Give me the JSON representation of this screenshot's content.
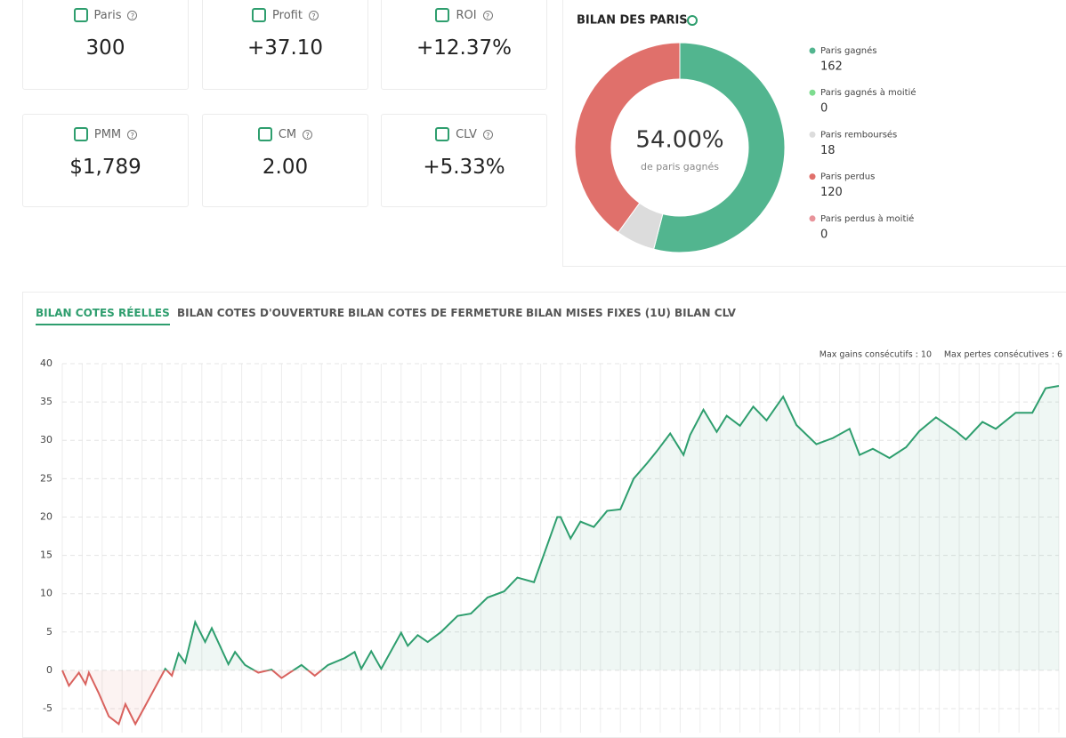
{
  "stats": [
    {
      "label": "Paris",
      "value": "300"
    },
    {
      "label": "Profit",
      "value": "+37.10"
    },
    {
      "label": "ROI",
      "value": "+12.37%"
    },
    {
      "label": "PMM",
      "value": "$1,789"
    },
    {
      "label": "CM",
      "value": "2.00"
    },
    {
      "label": "CLV",
      "value": "+5.33%"
    }
  ],
  "tabs": [
    "BILAN COTES RÉELLES",
    "BILAN COTES D'OUVERTURE",
    "BILAN COTES DE FERMETURE",
    "BILAN MISES FIXES (1U)",
    "BILAN CLV"
  ],
  "chart_data": [
    {
      "type": "pie",
      "title": "BILAN DES PARIS",
      "center_text": "54.00%",
      "center_caption": "de paris gagnés",
      "categories": [
        "Paris gagnés",
        "Paris gagnés à moitié",
        "Paris remboursés",
        "Paris perdus",
        "Paris perdus à moitié"
      ],
      "values": [
        162,
        0,
        18,
        120,
        0
      ],
      "colors": [
        "#52b58f",
        "#7ddc8f",
        "#dcdcdc",
        "#e0706b",
        "#e8939a"
      ]
    },
    {
      "type": "line",
      "annotations": [
        "Max gains consécutifs : 10",
        "Max pertes consécutives : 6"
      ],
      "x": [
        0,
        2,
        5,
        7,
        8,
        11,
        14,
        17,
        19,
        22,
        25,
        31,
        33,
        35,
        37,
        40,
        43,
        45,
        50,
        52,
        55,
        59,
        63,
        66,
        72,
        76,
        80,
        85,
        88,
        90,
        93,
        96,
        102,
        104,
        107,
        110,
        114,
        119,
        123,
        128,
        133,
        137,
        142,
        149,
        150,
        153,
        156,
        160,
        164,
        168,
        172,
        176,
        179,
        183,
        187,
        189,
        193,
        197,
        200,
        204,
        208,
        212,
        217,
        221,
        227,
        232,
        237,
        240,
        244,
        249,
        254,
        258,
        263,
        269,
        272,
        277,
        281,
        287,
        292,
        296,
        300
      ],
      "values": [
        0,
        -2,
        -0.3,
        -1.8,
        -0.3,
        -3,
        -6,
        -7,
        -4.4,
        -7,
        -4.6,
        0.2,
        -0.7,
        2.2,
        1,
        6.3,
        3.7,
        5.5,
        0.8,
        2.4,
        0.7,
        -0.3,
        0.1,
        -1,
        0.7,
        -0.7,
        0.7,
        1.6,
        2.4,
        0.2,
        2.5,
        0.2,
        4.9,
        3.2,
        4.6,
        3.7,
        5,
        7.1,
        7.4,
        9.5,
        10.3,
        12.1,
        11.5,
        20,
        20,
        17.2,
        19.4,
        18.7,
        20.8,
        21,
        25,
        27,
        28.6,
        30.9,
        28.1,
        30.7,
        34,
        31.1,
        33.2,
        31.9,
        34.4,
        32.6,
        35.7,
        32,
        29.5,
        30.3,
        31.5,
        28.1,
        28.9,
        27.7,
        29.1,
        31.2,
        33,
        31.2,
        30.1,
        32.4,
        31.5,
        33.6,
        33.6,
        36.8,
        37.1
      ],
      "xlim": [
        0,
        300
      ],
      "ylim": [
        -7.5,
        40
      ],
      "yticks": [
        -5,
        0,
        5,
        10,
        15,
        20,
        25,
        30,
        35,
        40
      ],
      "positive_color": "#2e9e6e",
      "negative_color": "#d9625e",
      "grid": true
    }
  ]
}
